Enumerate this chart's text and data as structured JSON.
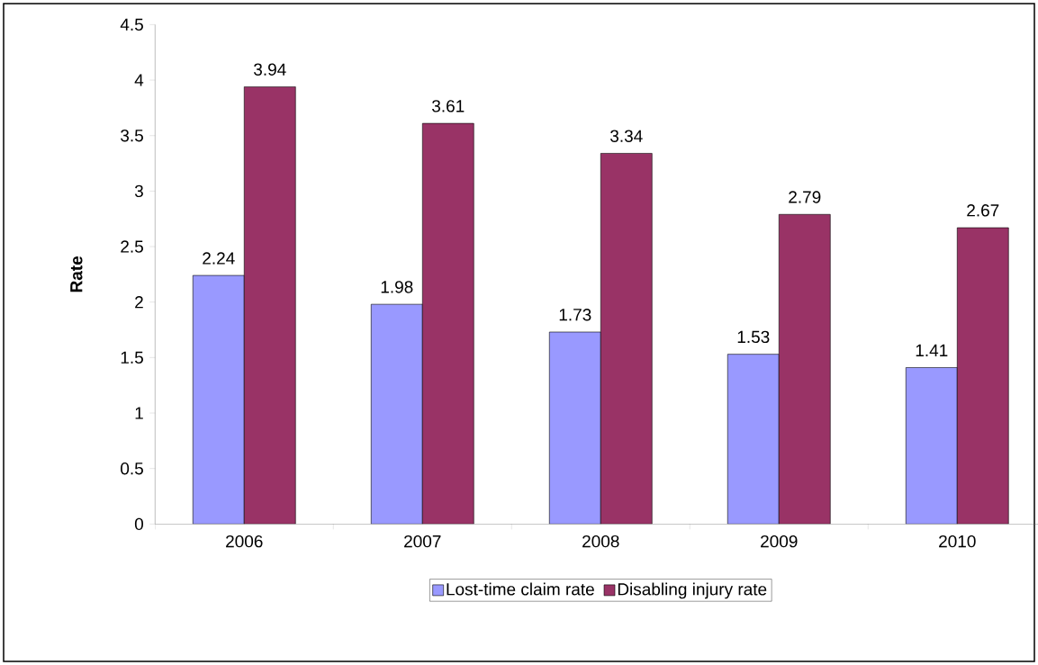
{
  "chart_data": {
    "type": "bar",
    "ylabel": "Rate",
    "categories": [
      "2006",
      "2007",
      "2008",
      "2009",
      "2010"
    ],
    "series": [
      {
        "name": "Lost-time claim rate",
        "color": "#9999ff",
        "values": [
          2.24,
          1.98,
          1.73,
          1.53,
          1.41
        ]
      },
      {
        "name": "Disabling injury rate",
        "color": "#993366",
        "values": [
          3.94,
          3.61,
          3.34,
          2.79,
          2.67
        ]
      }
    ],
    "ylim": [
      0,
      4.5
    ],
    "yticks": [
      0,
      0.5,
      1,
      1.5,
      2,
      2.5,
      3,
      3.5,
      4,
      4.5
    ],
    "data_labels": true,
    "legend": "bottom",
    "grid": false
  }
}
